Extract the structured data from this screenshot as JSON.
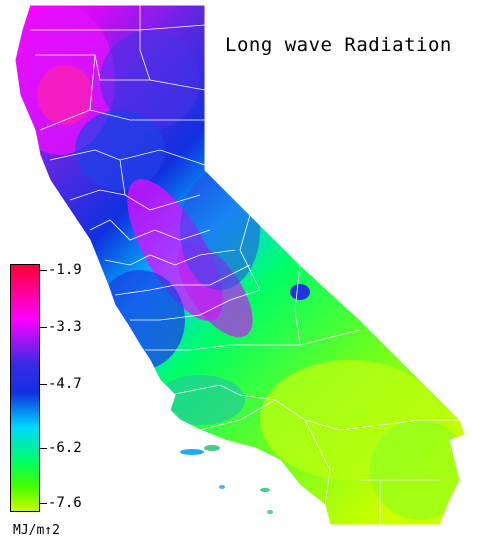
{
  "map": {
    "title": "Long wave Radiation",
    "region": "California",
    "colors": {
      "high": "#ff0033",
      "magenta": "#ff00ff",
      "purple": "#5a28e0",
      "blue": "#1030e0",
      "cyan": "#00d8ff",
      "green": "#00ff66",
      "lime": "#ccff00",
      "county_lines": "#ffffff"
    }
  },
  "legend": {
    "ticks": [
      "-1.9",
      "-3.3",
      "-4.7",
      "-6.2",
      "-7.6"
    ],
    "units": "MJ/m↑2"
  }
}
